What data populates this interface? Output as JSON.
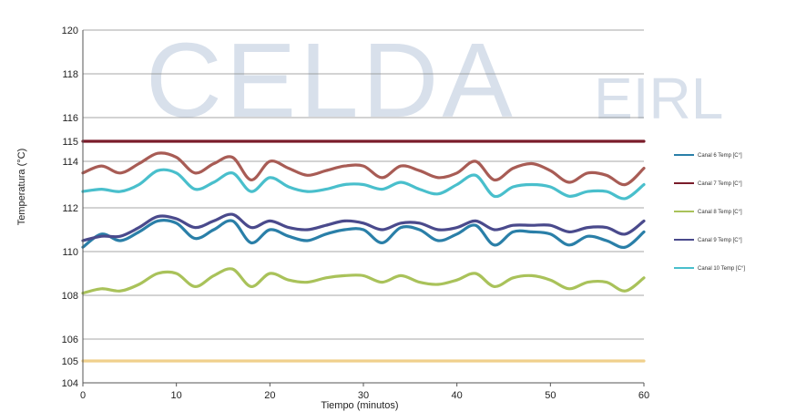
{
  "watermark": {
    "main": "CELDA",
    "suffix": "EIRL"
  },
  "chart_data": {
    "type": "line",
    "title": "",
    "xlabel": "Tiempo (minutos)",
    "ylabel": "Temperatura (°C)",
    "xlim": [
      0,
      60
    ],
    "ylim": [
      104,
      120
    ],
    "xticks": [
      0,
      10,
      20,
      30,
      40,
      50,
      60
    ],
    "yticks": [
      104,
      105,
      106,
      108,
      110,
      112,
      114,
      115,
      116,
      118,
      120
    ],
    "grid": true,
    "legend_position": "right",
    "x": [
      0,
      2,
      4,
      6,
      8,
      10,
      12,
      14,
      16,
      18,
      20,
      22,
      24,
      26,
      28,
      30,
      32,
      34,
      36,
      38,
      40,
      42,
      44,
      46,
      48,
      50,
      52,
      54,
      56,
      58,
      60
    ],
    "series": [
      {
        "name": "Canal 6 Temp [C°]",
        "color": "#2a7fa8",
        "values": [
          110.2,
          110.8,
          110.5,
          110.9,
          111.4,
          111.3,
          110.6,
          111.0,
          111.4,
          110.4,
          111.0,
          110.7,
          110.5,
          110.8,
          111.0,
          111.0,
          110.4,
          111.1,
          111.0,
          110.5,
          110.8,
          111.2,
          110.3,
          110.9,
          110.9,
          110.8,
          110.3,
          110.7,
          110.5,
          110.2,
          110.9
        ]
      },
      {
        "name": "Canal 7 Temp [C°]",
        "color": "#7a1c2a",
        "values": [
          115.0,
          115.0,
          115.0,
          115.0,
          115.0,
          115.0,
          115.0,
          115.0,
          115.0,
          115.0,
          115.0,
          115.0,
          115.0,
          115.0,
          115.0,
          115.0,
          115.0,
          115.0,
          115.0,
          115.0,
          115.0,
          115.0,
          115.0,
          115.0,
          115.0,
          115.0,
          115.0,
          115.0,
          115.0,
          115.0,
          115.0
        ]
      },
      {
        "name": "Canal 8 Temp [C°]",
        "color": "#a9c25a",
        "values": [
          108.1,
          108.3,
          108.2,
          108.5,
          109.0,
          109.0,
          108.4,
          108.9,
          109.2,
          108.4,
          109.0,
          108.7,
          108.6,
          108.8,
          108.9,
          108.9,
          108.6,
          108.9,
          108.6,
          108.5,
          108.7,
          109.0,
          108.4,
          108.8,
          108.9,
          108.7,
          108.3,
          108.6,
          108.6,
          108.2,
          108.8
        ]
      },
      {
        "name": "Canal 9 Temp [C°]",
        "color": "#4a4a8c",
        "values": [
          110.5,
          110.7,
          110.7,
          111.1,
          111.6,
          111.5,
          111.1,
          111.4,
          111.7,
          111.1,
          111.4,
          111.1,
          111.0,
          111.2,
          111.4,
          111.3,
          111.0,
          111.3,
          111.3,
          111.0,
          111.1,
          111.4,
          111.0,
          111.2,
          111.2,
          111.2,
          110.9,
          111.1,
          111.1,
          110.8,
          111.4
        ]
      },
      {
        "name": "Canal 10 Temp [C°]",
        "color": "#49bfcc",
        "values": [
          112.7,
          112.8,
          112.7,
          113.0,
          113.6,
          113.5,
          112.8,
          113.1,
          113.5,
          112.7,
          113.3,
          112.9,
          112.7,
          112.8,
          113.0,
          113.0,
          112.8,
          113.1,
          112.8,
          112.6,
          113.0,
          113.4,
          112.5,
          112.9,
          113.0,
          112.9,
          112.5,
          112.7,
          112.7,
          112.4,
          113.0
        ]
      },
      {
        "name": "",
        "color": "#a85c55",
        "values": [
          113.5,
          113.8,
          113.5,
          113.9,
          114.4,
          114.2,
          113.5,
          113.9,
          114.2,
          113.2,
          114.0,
          113.7,
          113.4,
          113.6,
          113.8,
          113.8,
          113.3,
          113.8,
          113.6,
          113.3,
          113.5,
          114.0,
          113.2,
          113.7,
          113.9,
          113.6,
          113.1,
          113.5,
          113.4,
          113.0,
          113.7
        ]
      },
      {
        "name": "",
        "color": "#f0d08c",
        "values": [
          105.0,
          105.0,
          105.0,
          105.0,
          105.0,
          105.0,
          105.0,
          105.0,
          105.0,
          105.0,
          105.0,
          105.0,
          105.0,
          105.0,
          105.0,
          105.0,
          105.0,
          105.0,
          105.0,
          105.0,
          105.0,
          105.0,
          105.0,
          105.0,
          105.0,
          105.0,
          105.0,
          105.0,
          105.0,
          105.0,
          105.0
        ]
      }
    ]
  }
}
